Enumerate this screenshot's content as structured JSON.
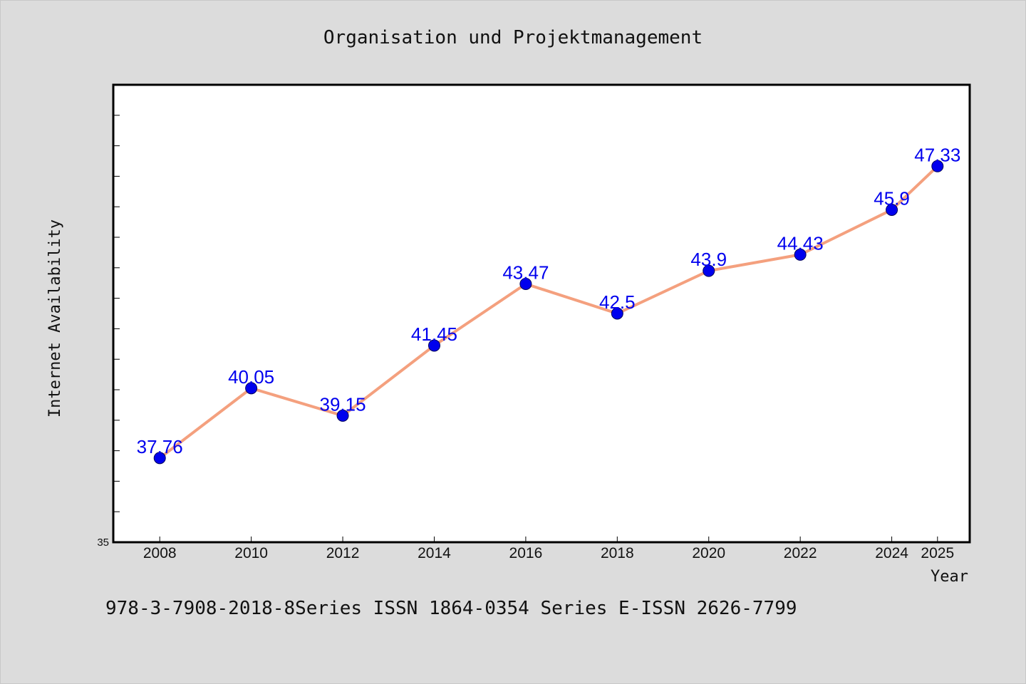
{
  "colors": {
    "background": "#dcdcdc",
    "plot_background": "#ffffff",
    "line": "#f4a07e",
    "marker": "#0000ee",
    "data_label": "#0000ee"
  },
  "footer": "978-3-7908-2018-8Series ISSN 1864-0354 Series E-ISSN 2626-7799",
  "chart_data": {
    "type": "line",
    "title": "Organisation und Projektmanagement",
    "xlabel": "Year",
    "ylabel": "Internet Availability",
    "categories": [
      "2008",
      "2010",
      "2012",
      "2014",
      "2016",
      "2018",
      "2020",
      "2022",
      "2024",
      "2025"
    ],
    "series": [
      {
        "values": [
          37.76,
          40.05,
          39.15,
          41.45,
          43.47,
          42.5,
          43.9,
          44.43,
          45.9,
          47.33
        ],
        "labels": [
          "37.76",
          "40.05",
          "39.15",
          "41.45",
          "43.47",
          "42.5",
          "43.9",
          "44.43",
          "45.9",
          "47.33"
        ]
      }
    ],
    "ylim": [
      35,
      50
    ],
    "y_tick_labels": [
      "35"
    ],
    "grid": false,
    "legend": "none"
  }
}
